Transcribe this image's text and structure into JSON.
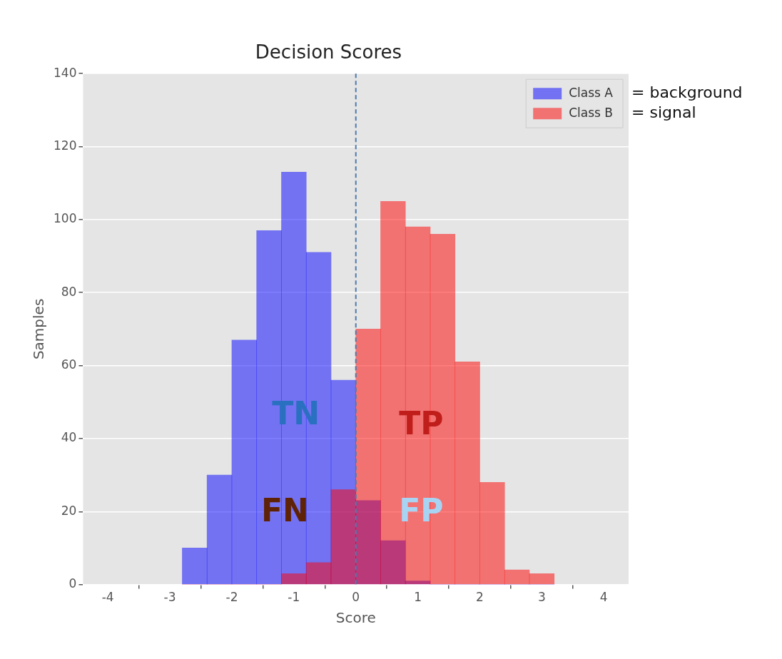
{
  "chart_data": {
    "type": "histogram",
    "title": "Decision Scores",
    "xlabel": "Score",
    "ylabel": "Samples",
    "bins": [
      -2.8,
      -2.4,
      -2.0,
      -1.6,
      -1.2,
      -0.8,
      -0.4,
      0,
      0.4,
      0.8,
      1.2,
      1.6,
      2.0,
      2.4,
      2.8,
      3.2
    ],
    "series": [
      {
        "name": "Class A",
        "color": "#0000ff",
        "values": [
          10,
          30,
          67,
          97,
          113,
          91,
          56,
          23,
          12,
          1,
          0,
          0,
          0,
          0,
          0
        ]
      },
      {
        "name": "Class B",
        "color": "#ff0000",
        "values": [
          0,
          0,
          0,
          0,
          3,
          6,
          26,
          70,
          105,
          98,
          96,
          61,
          28,
          4,
          3
        ]
      }
    ],
    "xlim": [
      -4.4,
      4.4
    ],
    "xticks": [
      -4,
      -3,
      -2,
      -1,
      0,
      1,
      2,
      3,
      4
    ],
    "ylim": [
      0,
      140
    ],
    "yticks": [
      0,
      20,
      40,
      60,
      80,
      100,
      120,
      140
    ],
    "grid": "y",
    "legend": "top right",
    "ref_lines": [
      {
        "axis": "x",
        "value": 0,
        "color": "#4e7bab",
        "line_style": "dashed"
      }
    ],
    "annotations": [
      "= background",
      "= signal",
      "TN",
      "TP",
      "FN",
      "FP"
    ]
  }
}
